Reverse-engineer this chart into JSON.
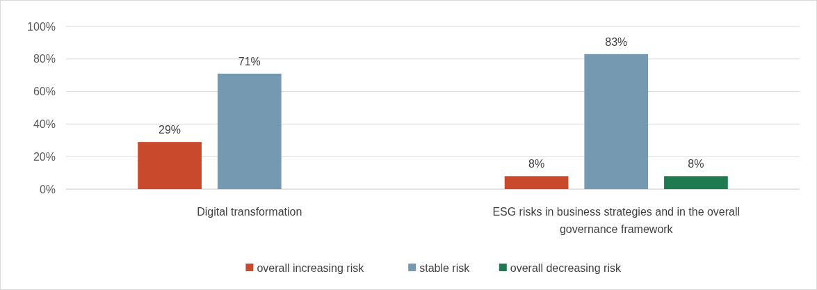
{
  "chart_data": {
    "type": "bar",
    "categories": [
      "Digital transformation",
      "ESG risks in business strategies and in the overall governance framework"
    ],
    "series": [
      {
        "name": "overall increasing risk",
        "color": "#c8492c",
        "values": [
          29,
          8
        ],
        "value_labels": [
          "29%",
          "8%"
        ]
      },
      {
        "name": "stable risk",
        "color": "#7599b0",
        "values": [
          71,
          83
        ],
        "value_labels": [
          "71%",
          "83%"
        ]
      },
      {
        "name": "overall decreasing risk",
        "color": "#1f7a4f",
        "values": [
          null,
          8
        ],
        "value_labels": [
          null,
          "8%"
        ]
      }
    ],
    "ylim": [
      0,
      100
    ],
    "yticks": [
      {
        "value": 0,
        "label": "0%"
      },
      {
        "value": 20,
        "label": "20%"
      },
      {
        "value": 40,
        "label": "40%"
      },
      {
        "value": 60,
        "label": "60%"
      },
      {
        "value": 80,
        "label": "80%"
      },
      {
        "value": 100,
        "label": "100%"
      }
    ],
    "grid": "y",
    "legend": "bottom"
  }
}
